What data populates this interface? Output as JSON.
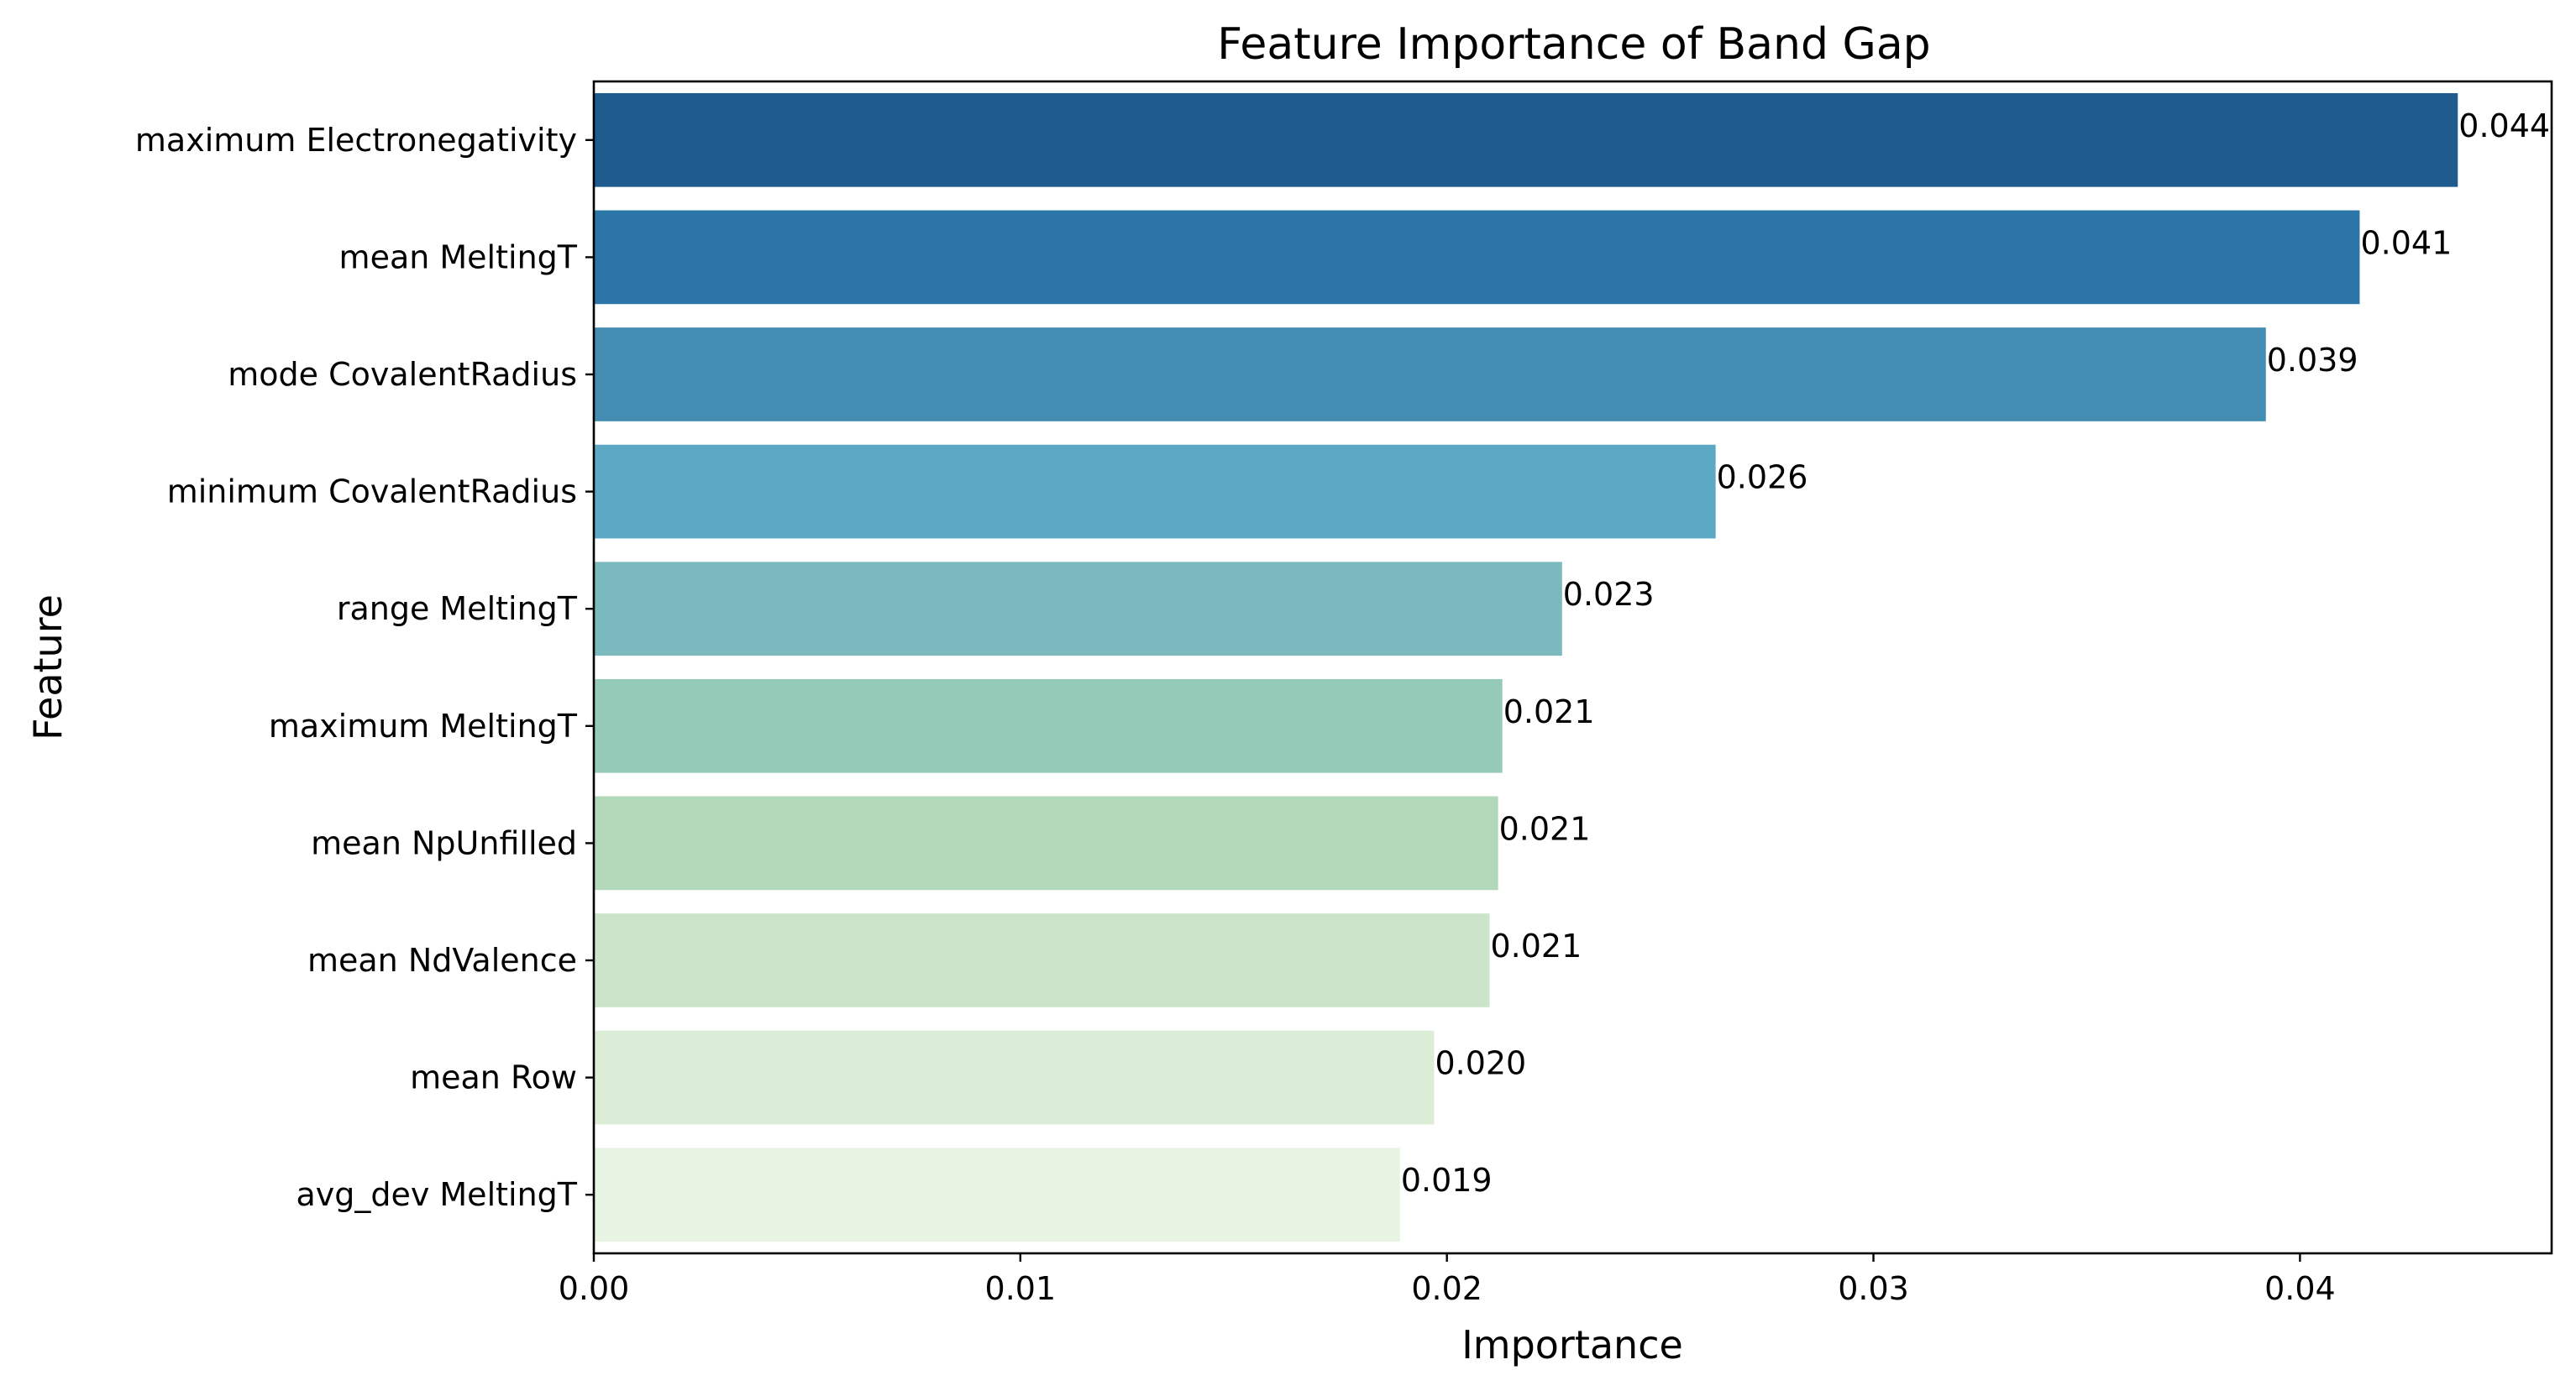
{
  "chart_data": {
    "type": "bar",
    "orientation": "horizontal",
    "title": "Feature Importance of Band Gap",
    "xlabel": "Importance",
    "ylabel": "Feature",
    "xlim": [
      0,
      0.0459
    ],
    "xticks": [
      0.0,
      0.01,
      0.02,
      0.03,
      0.04
    ],
    "xtick_labels": [
      "0.00",
      "0.01",
      "0.02",
      "0.03",
      "0.04"
    ],
    "grid": false,
    "legend": "none",
    "categories": [
      "maximum Electronegativity",
      "mean MeltingT",
      "mode CovalentRadius",
      "minimum CovalentRadius",
      "range MeltingT",
      "maximum MeltingT",
      "mean NpUnfilled",
      "mean NdValence",
      "mean Row",
      "avg_dev MeltingT"
    ],
    "values": [
      0.0437,
      0.0414,
      0.0392,
      0.0263,
      0.0227,
      0.0213,
      0.0212,
      0.021,
      0.0197,
      0.0189
    ],
    "value_labels": [
      "0.044",
      "0.041",
      "0.039",
      "0.026",
      "0.023",
      "0.021",
      "0.021",
      "0.021",
      "0.020",
      "0.019"
    ],
    "colors": [
      "#1f5b8e",
      "#2b76a6",
      "#438db2",
      "#5ca8c5",
      "#7ab9be",
      "#95cab9",
      "#b1d9b9",
      "#cae5c9",
      "#dbecd7",
      "#e8f4e3"
    ]
  }
}
